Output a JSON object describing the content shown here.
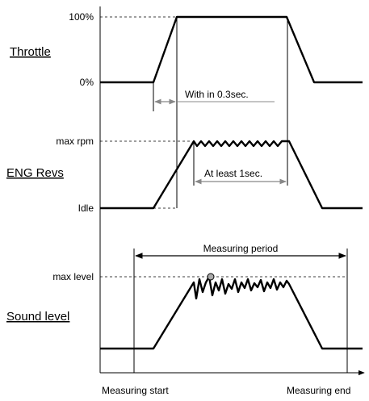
{
  "throttle": {
    "title": "Throttle",
    "label_top": "100%",
    "label_bottom": "0%",
    "annotation": "With in 0.3sec."
  },
  "engine": {
    "title": "ENG Revs",
    "label_top": "max rpm",
    "label_bottom": "Idle",
    "annotation": "At least 1sec."
  },
  "sound": {
    "title": "Sound level",
    "label_top": "max level",
    "annotation": "Measuring period"
  },
  "time_axis": {
    "start_label": "Measuring start",
    "end_label": "Measuring end"
  },
  "colors": {
    "line": "#000000",
    "dimension_arrow": "#888888",
    "text": "#000000"
  }
}
